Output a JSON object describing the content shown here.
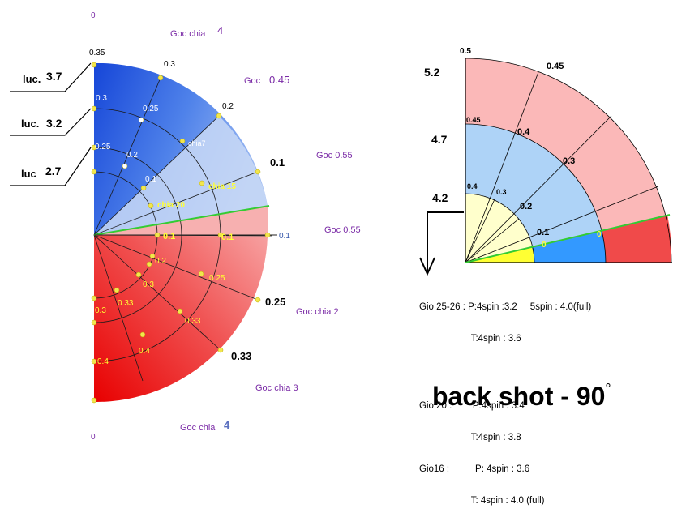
{
  "left_diagram": {
    "edge_zero_top": "0",
    "edge_zero_bottom": "0",
    "goc_chia_4_top": {
      "text": "Goc chia",
      "num": "4"
    },
    "goc_045": {
      "text": "Goc",
      "num": "0.45"
    },
    "goc_055_a": "Goc 0.55",
    "goc_055_b": "Goc 0.55",
    "goc_chia_2": "Goc chia 2",
    "goc_chia_3": "Goc chia 3",
    "goc_chia_4_bottom": {
      "text": "Goc chia",
      "num": "4"
    },
    "luc_labels": [
      {
        "text": "luc.",
        "num": "3.7"
      },
      {
        "text": "luc.",
        "num": "3.2"
      },
      {
        "text": "luc",
        "num": "2.7"
      }
    ],
    "upper_outer_ticks": [
      "0.35",
      "0.3",
      "0.2",
      "0.1",
      "0.1"
    ],
    "upper_inner_labels": [
      "0.3",
      "0.25",
      "0.25",
      "0.2",
      "0.1",
      "chia7",
      "chia 15",
      "chia 20"
    ],
    "axis_labels": [
      "0.1",
      "0.1"
    ],
    "lower_labels": [
      "0.2",
      "0.3",
      "0.33",
      "0.3",
      "0.25",
      "0.33",
      "0.4",
      "0.4"
    ],
    "lower_outer_ticks": [
      "0.25",
      "0.33"
    ],
    "colors": {
      "blue": "#1c5ce6",
      "light_blue": "#c4d6f7",
      "red": "#f20000",
      "pink": "#f7a8a8",
      "green_line": "#33cc33",
      "dot": "#f2e64d"
    }
  },
  "right_diagram": {
    "top_axis": "0.5",
    "left_values": [
      "5.2",
      "4.7",
      "4.2"
    ],
    "ring_labels": [
      "0.45",
      "0.45",
      "0.4",
      "0.4",
      "0.3",
      "0.3",
      "0.2",
      "0.1"
    ],
    "zero_marks": [
      "0",
      "0"
    ],
    "colors": {
      "pink": "#fbb8b8",
      "light_blue": "#aed3f7",
      "cream": "#ffffcc",
      "blue": "#3399ff",
      "red": "#f04a4a",
      "yellow": "#ffff33",
      "green_line": "#33cc33"
    }
  },
  "notes": [
    "Gio 25-26 : P:4spin :3.2     5spin : 4.0(full)",
    "                    T:4spin : 3.6",
    "Gio 20 :        P:4spin : 3.4",
    "                    T:4spin : 3.8",
    "Gio16 :          P: 4spin : 3.6",
    "                    T: 4spin : 4.0 (full)"
  ],
  "title": {
    "text": "back shot - 90",
    "degree": "°"
  }
}
